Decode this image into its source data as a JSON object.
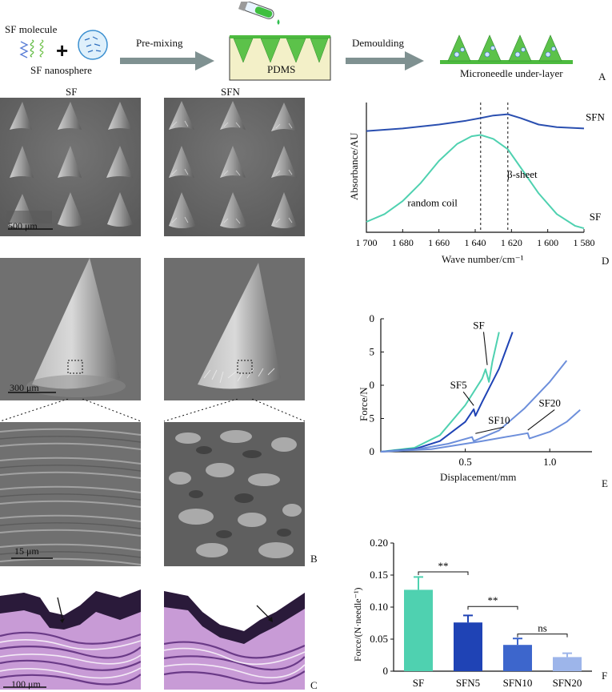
{
  "panel_letters": {
    "a": "A",
    "b": "B",
    "c": "C",
    "d": "D",
    "e": "E",
    "f": "F"
  },
  "schematic": {
    "sf_molecule": "SF molecule",
    "plus": "+",
    "sf_nanosphere": "SF nanosphere",
    "premixing": "Pre-mixing",
    "pdms": "PDMS",
    "demoulding": "Demoulding",
    "underlayer": "Microneedle under-layer"
  },
  "sem": {
    "col_sf": "SF",
    "col_sfn": "SFN",
    "scale_1": "500 μm",
    "scale_2": "300 μm",
    "scale_3": "15 μm",
    "scale_4": "100 μm"
  },
  "colors": {
    "teal": "#4fd1b0",
    "blue_dark": "#1f43b5",
    "blue_mid": "#3d66cc",
    "blue_light": "#6d8fdb",
    "blue_pale": "#9db5ea",
    "line_sfn": "#2a4fb0"
  },
  "chart_data": [
    {
      "type": "line",
      "panel": "D",
      "xlabel": "Wave number/cm⁻¹",
      "ylabel": "Absorbance/AU",
      "xlim": [
        1700,
        1580
      ],
      "xticks": [
        "1 700",
        "1 680",
        "1 660",
        "1 640",
        "1 620",
        "1 600",
        "1 580"
      ],
      "annotations": [
        "random coil",
        "β-sheet"
      ],
      "vlines": [
        1637,
        1622
      ],
      "series": [
        {
          "name": "SFN",
          "x": [
            1700,
            1680,
            1660,
            1645,
            1637,
            1630,
            1622,
            1615,
            1605,
            1595,
            1580
          ],
          "y": [
            0.78,
            0.8,
            0.83,
            0.86,
            0.88,
            0.9,
            0.91,
            0.88,
            0.83,
            0.81,
            0.8
          ]
        },
        {
          "name": "SF",
          "x": [
            1700,
            1690,
            1680,
            1670,
            1660,
            1650,
            1642,
            1637,
            1630,
            1622,
            1615,
            1605,
            1595,
            1585,
            1580
          ],
          "y": [
            0.08,
            0.14,
            0.24,
            0.38,
            0.55,
            0.68,
            0.74,
            0.75,
            0.72,
            0.64,
            0.5,
            0.3,
            0.14,
            0.05,
            0.03
          ]
        }
      ]
    },
    {
      "type": "line",
      "panel": "E",
      "xlabel": "Displacement/mm",
      "ylabel": "Force/N",
      "xlim": [
        0,
        1.25
      ],
      "ylim": [
        0,
        20
      ],
      "xticks": [
        "0.5",
        "1.0"
      ],
      "yticks": [
        "0",
        "5",
        "0",
        "5",
        "0"
      ],
      "annotations": [
        "SF",
        "SF5",
        "SF10",
        "SF20"
      ],
      "series": [
        {
          "name": "SF",
          "x": [
            0,
            0.2,
            0.35,
            0.5,
            0.6,
            0.62,
            0.64,
            0.66,
            0.7
          ],
          "y": [
            0,
            0.6,
            2.5,
            7,
            11,
            12.4,
            10.5,
            13.5,
            18
          ]
        },
        {
          "name": "SF5",
          "x": [
            0,
            0.2,
            0.35,
            0.5,
            0.55,
            0.56,
            0.6,
            0.7,
            0.78
          ],
          "y": [
            0,
            0.4,
            1.6,
            4.5,
            6.4,
            5.4,
            7.5,
            12.5,
            18
          ]
        },
        {
          "name": "SF10",
          "x": [
            0,
            0.2,
            0.4,
            0.54,
            0.55,
            0.7,
            0.85,
            1.0,
            1.1
          ],
          "y": [
            0,
            0.3,
            1.2,
            2.2,
            1.6,
            3.2,
            6.5,
            10.5,
            13.7
          ]
        },
        {
          "name": "SF20",
          "x": [
            0,
            0.3,
            0.6,
            0.87,
            0.88,
            1.0,
            1.1,
            1.18
          ],
          "y": [
            0,
            0.4,
            1.6,
            2.8,
            2.0,
            3.0,
            4.5,
            6.3
          ]
        }
      ]
    },
    {
      "type": "bar",
      "panel": "F",
      "ylabel": "Force/(N·needle⁻¹)",
      "ylim": [
        0,
        0.2
      ],
      "yticks": [
        "0",
        "0.05",
        "0.10",
        "0.15",
        "0.20"
      ],
      "ytick_values": [
        0,
        0.05,
        0.1,
        0.15,
        0.2
      ],
      "categories": [
        "SF",
        "SFN5",
        "SFN10",
        "SFN20"
      ],
      "values": [
        0.127,
        0.076,
        0.041,
        0.022
      ],
      "errors": [
        0.02,
        0.011,
        0.01,
        0.006
      ],
      "significance": [
        "**",
        "**",
        "ns"
      ]
    }
  ]
}
